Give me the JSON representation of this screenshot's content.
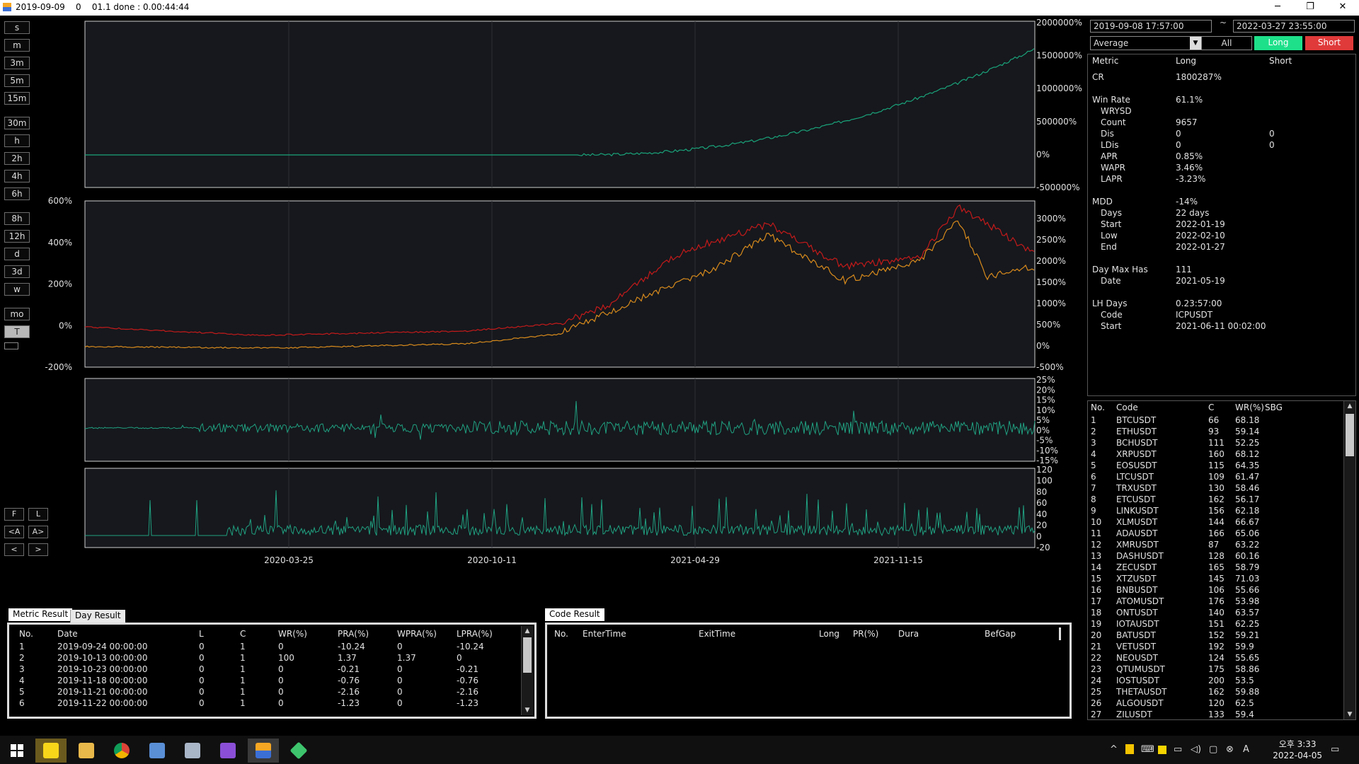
{
  "window": {
    "title": "2019-09-09    0    01.1 done : 0.00:44:44"
  },
  "left_buttons": [
    "s",
    "m",
    "3m",
    "5m",
    "15m",
    "30m",
    "h",
    "2h",
    "4h",
    "6h",
    "8h",
    "12h",
    "d",
    "3d",
    "w",
    "mo",
    "T"
  ],
  "active_left_button": "T",
  "nav_buttons": {
    "f": "F",
    "l": "L",
    "a_left": "<A",
    "a_right": "A>",
    "left": "<",
    "right": ">"
  },
  "charts": {
    "panel1_axis": [
      "2000000%",
      "1500000%",
      "1000000%",
      "500000%",
      "0%",
      "-500000%"
    ],
    "panel2_left_axis": [
      "600%",
      "400%",
      "200%",
      "0%",
      "-200%"
    ],
    "panel2_right_axis": [
      "3000%",
      "2500%",
      "2000%",
      "1500%",
      "1000%",
      "500%",
      "0%",
      "-500%"
    ],
    "panel3_axis": [
      "25%",
      "20%",
      "15%",
      "10%",
      "5%",
      "0%",
      "-5%",
      "-10%",
      "-15%"
    ],
    "panel4_axis": [
      "120",
      "100",
      "80",
      "60",
      "40",
      "20",
      "0",
      "-20"
    ],
    "x_dates": [
      "2020-03-25",
      "2020-10-11",
      "2021-04-29",
      "2021-11-15"
    ],
    "colors": {
      "equity": "#1aa37a",
      "long": "#c41a1a",
      "short": "#d88a1c",
      "osc": "#20a080",
      "bg": "#16181d",
      "grid": "#2e3138"
    }
  },
  "controls": {
    "date_from": "2019-09-08 17:57:00",
    "tilde": "~",
    "date_to": "2022-03-27 23:55:00",
    "select_value": "Average",
    "btn_all": "All",
    "btn_long": "Long",
    "btn_short": "Short"
  },
  "metrics": {
    "headers": [
      "Metric",
      "Long",
      "Short"
    ],
    "rows": [
      {
        "k": "CR",
        "v": "1800287%",
        "s": ""
      },
      {
        "k": "",
        "v": "",
        "s": ""
      },
      {
        "k": "Win Rate",
        "v": "61.1%",
        "s": ""
      },
      {
        "k": "  WRYSD",
        "v": "",
        "s": ""
      },
      {
        "k": "  Count",
        "v": "9657",
        "s": ""
      },
      {
        "k": "  Dis",
        "v": "0",
        "s": "0"
      },
      {
        "k": "  LDis",
        "v": "0",
        "s": "0"
      },
      {
        "k": "  APR",
        "v": "0.85%",
        "s": ""
      },
      {
        "k": "  WAPR",
        "v": "3.46%",
        "s": ""
      },
      {
        "k": "  LAPR",
        "v": "-3.23%",
        "s": ""
      },
      {
        "k": "",
        "v": "",
        "s": ""
      },
      {
        "k": "MDD",
        "v": "-14%",
        "s": ""
      },
      {
        "k": "  Days",
        "v": "22 days",
        "s": ""
      },
      {
        "k": "  Start",
        "v": "2022-01-19",
        "s": ""
      },
      {
        "k": "  Low",
        "v": "2022-02-10",
        "s": ""
      },
      {
        "k": "  End",
        "v": "2022-01-27",
        "s": ""
      },
      {
        "k": "",
        "v": "",
        "s": ""
      },
      {
        "k": "Day Max Has",
        "v": "111",
        "s": ""
      },
      {
        "k": "  Date",
        "v": "2021-05-19",
        "s": ""
      },
      {
        "k": "",
        "v": "",
        "s": ""
      },
      {
        "k": "LH Days",
        "v": "0.23:57:00",
        "s": ""
      },
      {
        "k": "  Code",
        "v": "ICPUSDT",
        "s": ""
      },
      {
        "k": "  Start",
        "v": "2021-06-11 00:02:00",
        "s": ""
      }
    ]
  },
  "codes": {
    "headers": [
      "No.",
      "Code",
      "C",
      "WR(%)",
      "SBG"
    ],
    "rows": [
      [
        "1",
        "BTCUSDT",
        "66",
        "68.18"
      ],
      [
        "2",
        "ETHUSDT",
        "93",
        "59.14"
      ],
      [
        "3",
        "BCHUSDT",
        "111",
        "52.25"
      ],
      [
        "4",
        "XRPUSDT",
        "160",
        "68.12"
      ],
      [
        "5",
        "EOSUSDT",
        "115",
        "64.35"
      ],
      [
        "6",
        "LTCUSDT",
        "109",
        "61.47"
      ],
      [
        "7",
        "TRXUSDT",
        "130",
        "58.46"
      ],
      [
        "8",
        "ETCUSDT",
        "162",
        "56.17"
      ],
      [
        "9",
        "LINKUSDT",
        "156",
        "62.18"
      ],
      [
        "10",
        "XLMUSDT",
        "144",
        "66.67"
      ],
      [
        "11",
        "ADAUSDT",
        "166",
        "65.06"
      ],
      [
        "12",
        "XMRUSDT",
        "87",
        "63.22"
      ],
      [
        "13",
        "DASHUSDT",
        "128",
        "60.16"
      ],
      [
        "14",
        "ZECUSDT",
        "165",
        "58.79"
      ],
      [
        "15",
        "XTZUSDT",
        "145",
        "71.03"
      ],
      [
        "16",
        "BNBUSDT",
        "106",
        "55.66"
      ],
      [
        "17",
        "ATOMUSDT",
        "176",
        "53.98"
      ],
      [
        "18",
        "ONTUSDT",
        "140",
        "63.57"
      ],
      [
        "19",
        "IOTAUSDT",
        "151",
        "62.25"
      ],
      [
        "20",
        "BATUSDT",
        "152",
        "59.21"
      ],
      [
        "21",
        "VETUSDT",
        "192",
        "59.9"
      ],
      [
        "22",
        "NEOUSDT",
        "124",
        "55.65"
      ],
      [
        "23",
        "QTUMUSDT",
        "175",
        "58.86"
      ],
      [
        "24",
        "IOSTUSDT",
        "200",
        "53.5"
      ],
      [
        "25",
        "THETAUSDT",
        "162",
        "59.88"
      ],
      [
        "26",
        "ALGOUSDT",
        "120",
        "62.5"
      ],
      [
        "27",
        "ZILUSDT",
        "133",
        "59.4"
      ]
    ]
  },
  "metric_result": {
    "tabs": [
      "Metric Result",
      "Day Result"
    ],
    "headers": [
      "No.",
      "Date",
      "L",
      "C",
      "WR(%)",
      "PRA(%)",
      "WPRA(%)",
      "LPRA(%)"
    ],
    "rows": [
      [
        "1",
        "2019-09-24 00:00:00",
        "0",
        "1",
        "0",
        "-10.24",
        "0",
        "-10.24"
      ],
      [
        "2",
        "2019-10-13 00:00:00",
        "0",
        "1",
        "100",
        "1.37",
        "1.37",
        "0"
      ],
      [
        "3",
        "2019-10-23 00:00:00",
        "0",
        "1",
        "0",
        "-0.21",
        "0",
        "-0.21"
      ],
      [
        "4",
        "2019-11-18 00:00:00",
        "0",
        "1",
        "0",
        "-0.76",
        "0",
        "-0.76"
      ],
      [
        "5",
        "2019-11-21 00:00:00",
        "0",
        "1",
        "0",
        "-2.16",
        "0",
        "-2.16"
      ],
      [
        "6",
        "2019-11-22 00:00:00",
        "0",
        "1",
        "0",
        "-1.23",
        "0",
        "-1.23"
      ]
    ]
  },
  "code_result": {
    "tab": "Code Result",
    "headers": [
      "No.",
      "EnterTime",
      "ExitTime",
      "Long",
      "PR(%)",
      "Dura",
      "BefGap"
    ]
  },
  "taskbar": {
    "time": "오후 3:33",
    "date": "2022-04-05",
    "apps": [
      "windows-start",
      "kakaotalk",
      "file-explorer",
      "chrome",
      "remote-desktop",
      "printer",
      "visual-studio",
      "backtest-app",
      "sticky-app"
    ]
  }
}
